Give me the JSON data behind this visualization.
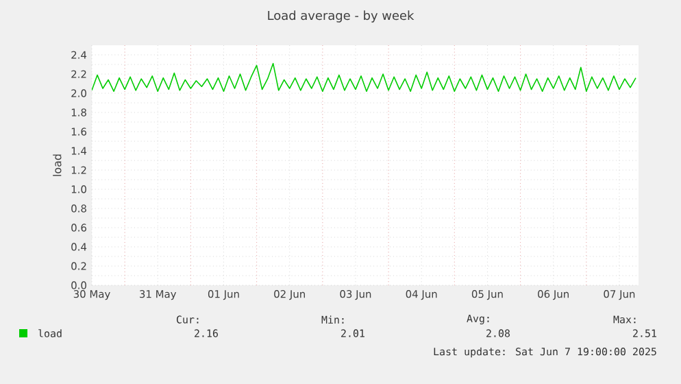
{
  "chart_data": {
    "type": "line",
    "title": "Load average - by week",
    "ylabel": "load",
    "x": [
      "2025-05-30T12:00",
      "2025-05-30T14:00",
      "2025-05-30T16:00",
      "2025-05-30T18:00",
      "2025-05-30T20:00",
      "2025-05-30T22:00",
      "2025-05-31T00:00",
      "2025-05-31T02:00",
      "2025-05-31T04:00",
      "2025-05-31T06:00",
      "2025-05-31T08:00",
      "2025-05-31T10:00",
      "2025-05-31T12:00",
      "2025-05-31T14:00",
      "2025-05-31T16:00",
      "2025-05-31T18:00",
      "2025-05-31T20:00",
      "2025-05-31T22:00",
      "2025-06-01T00:00",
      "2025-06-01T02:00",
      "2025-06-01T04:00",
      "2025-06-01T06:00",
      "2025-06-01T08:00",
      "2025-06-01T10:00",
      "2025-06-01T12:00",
      "2025-06-01T14:00",
      "2025-06-01T16:00",
      "2025-06-01T18:00",
      "2025-06-01T20:00",
      "2025-06-01T22:00",
      "2025-06-02T00:00",
      "2025-06-02T02:00",
      "2025-06-02T04:00",
      "2025-06-02T06:00",
      "2025-06-02T08:00",
      "2025-06-02T10:00",
      "2025-06-02T12:00",
      "2025-06-02T14:00",
      "2025-06-02T16:00",
      "2025-06-02T18:00",
      "2025-06-02T20:00",
      "2025-06-02T22:00",
      "2025-06-03T00:00",
      "2025-06-03T02:00",
      "2025-06-03T04:00",
      "2025-06-03T06:00",
      "2025-06-03T08:00",
      "2025-06-03T10:00",
      "2025-06-03T12:00",
      "2025-06-03T14:00",
      "2025-06-03T16:00",
      "2025-06-03T18:00",
      "2025-06-03T20:00",
      "2025-06-03T22:00",
      "2025-06-04T00:00",
      "2025-06-04T02:00",
      "2025-06-04T04:00",
      "2025-06-04T06:00",
      "2025-06-04T08:00",
      "2025-06-04T10:00",
      "2025-06-04T12:00",
      "2025-06-04T14:00",
      "2025-06-04T16:00",
      "2025-06-04T18:00",
      "2025-06-04T20:00",
      "2025-06-04T22:00",
      "2025-06-05T00:00",
      "2025-06-05T02:00",
      "2025-06-05T04:00",
      "2025-06-05T06:00",
      "2025-06-05T08:00",
      "2025-06-05T10:00",
      "2025-06-05T12:00",
      "2025-06-05T14:00",
      "2025-06-05T16:00",
      "2025-06-05T18:00",
      "2025-06-05T20:00",
      "2025-06-05T22:00",
      "2025-06-06T00:00",
      "2025-06-06T02:00",
      "2025-06-06T04:00",
      "2025-06-06T06:00",
      "2025-06-06T08:00",
      "2025-06-06T10:00",
      "2025-06-06T12:00",
      "2025-06-06T14:00",
      "2025-06-06T16:00",
      "2025-06-06T18:00",
      "2025-06-06T20:00",
      "2025-06-06T22:00",
      "2025-06-07T00:00",
      "2025-06-07T02:00",
      "2025-06-07T04:00",
      "2025-06-07T06:00",
      "2025-06-07T08:00",
      "2025-06-07T10:00",
      "2025-06-07T12:00",
      "2025-06-07T14:00",
      "2025-06-07T16:00",
      "2025-06-07T18:00"
    ],
    "series": [
      {
        "name": "load",
        "color": "#00cc00",
        "values": [
          2.03,
          2.19,
          2.05,
          2.14,
          2.02,
          2.16,
          2.04,
          2.17,
          2.03,
          2.15,
          2.06,
          2.18,
          2.02,
          2.16,
          2.04,
          2.21,
          2.03,
          2.14,
          2.05,
          2.13,
          2.07,
          2.15,
          2.04,
          2.16,
          2.02,
          2.18,
          2.05,
          2.2,
          2.03,
          2.17,
          2.29,
          2.04,
          2.15,
          2.31,
          2.03,
          2.14,
          2.05,
          2.16,
          2.03,
          2.15,
          2.05,
          2.17,
          2.02,
          2.16,
          2.04,
          2.19,
          2.03,
          2.15,
          2.04,
          2.18,
          2.02,
          2.16,
          2.05,
          2.2,
          2.03,
          2.17,
          2.04,
          2.15,
          2.02,
          2.19,
          2.05,
          2.22,
          2.03,
          2.16,
          2.04,
          2.18,
          2.02,
          2.15,
          2.05,
          2.17,
          2.03,
          2.19,
          2.04,
          2.16,
          2.02,
          2.18,
          2.05,
          2.17,
          2.03,
          2.2,
          2.04,
          2.15,
          2.02,
          2.16,
          2.05,
          2.18,
          2.03,
          2.16,
          2.04,
          2.27,
          2.02,
          2.17,
          2.05,
          2.16,
          2.03,
          2.18,
          2.04,
          2.15,
          2.06,
          2.16
        ]
      }
    ],
    "xlim": [
      "2025-05-30T12:00",
      "2025-06-07T19:00"
    ],
    "xticks": [
      {
        "value": "2025-05-30T12:00",
        "label": "30 May"
      },
      {
        "value": "2025-05-31T00:00",
        "label": null
      },
      {
        "value": "2025-05-31T12:00",
        "label": "31 May"
      },
      {
        "value": "2025-06-01T00:00",
        "label": null
      },
      {
        "value": "2025-06-01T12:00",
        "label": "01 Jun"
      },
      {
        "value": "2025-06-02T00:00",
        "label": null
      },
      {
        "value": "2025-06-02T12:00",
        "label": "02 Jun"
      },
      {
        "value": "2025-06-03T00:00",
        "label": null
      },
      {
        "value": "2025-06-03T12:00",
        "label": "03 Jun"
      },
      {
        "value": "2025-06-04T00:00",
        "label": null
      },
      {
        "value": "2025-06-04T12:00",
        "label": "04 Jun"
      },
      {
        "value": "2025-06-05T00:00",
        "label": null
      },
      {
        "value": "2025-06-05T12:00",
        "label": "05 Jun"
      },
      {
        "value": "2025-06-06T00:00",
        "label": null
      },
      {
        "value": "2025-06-06T12:00",
        "label": "06 Jun"
      },
      {
        "value": "2025-06-07T00:00",
        "label": null
      },
      {
        "value": "2025-06-07T12:00",
        "label": "07 Jun"
      }
    ],
    "ylim": [
      0,
      2.5
    ],
    "yticks": [
      {
        "value": 0,
        "label": "0.0"
      },
      {
        "value": 0.2,
        "label": "0.2"
      },
      {
        "value": 0.4,
        "label": "0.4"
      },
      {
        "value": 0.6,
        "label": "0.6"
      },
      {
        "value": 0.8,
        "label": "0.8"
      },
      {
        "value": 1.0,
        "label": "1.0"
      },
      {
        "value": 1.2,
        "label": "1.2"
      },
      {
        "value": 1.4,
        "label": "1.4"
      },
      {
        "value": 1.6,
        "label": "1.6"
      },
      {
        "value": 1.8,
        "label": "1.8"
      },
      {
        "value": 2.0,
        "label": "2.0"
      },
      {
        "value": 2.2,
        "label": "2.2"
      },
      {
        "value": 2.4,
        "label": "2.4"
      }
    ],
    "grid": true,
    "legend": "bottom left",
    "marker": "none",
    "line_style": "solid",
    "annotations": [
      "Cur:",
      "2.16",
      "Min:",
      "2.01",
      "Avg:",
      "2.08",
      "Max:",
      "2.51",
      "Last update: Sat Jun  7 19:00:00 2025"
    ]
  }
}
